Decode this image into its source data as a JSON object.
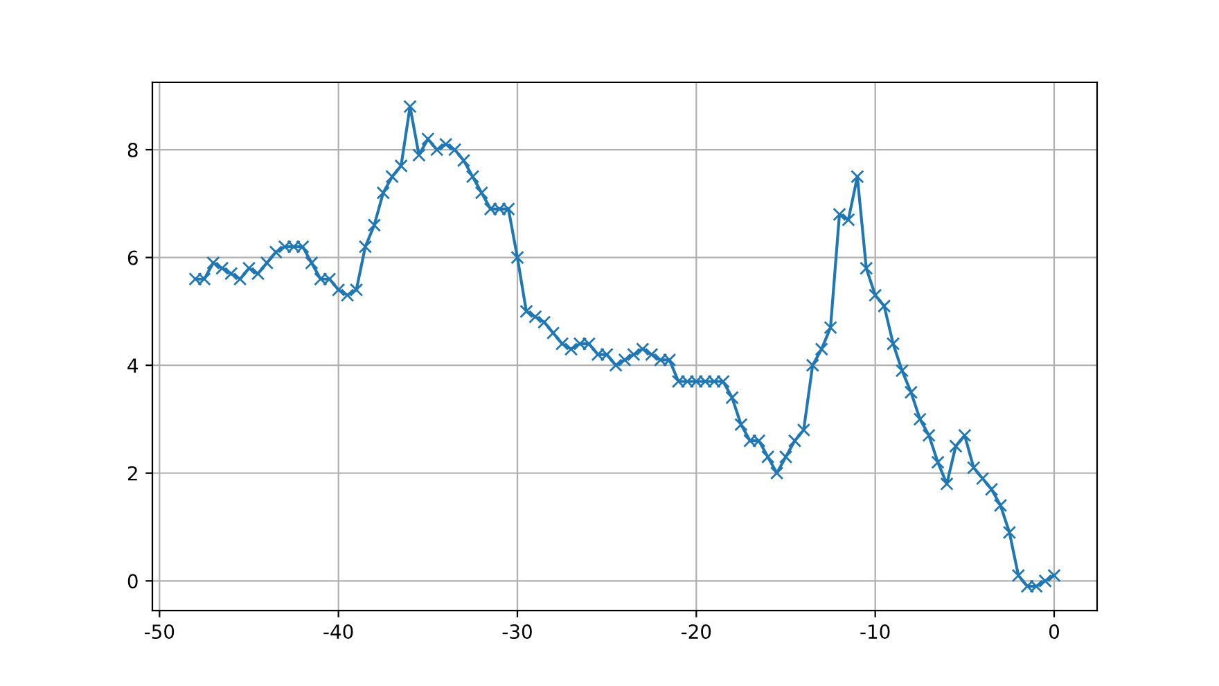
{
  "chart_data": {
    "type": "line",
    "marker": "cross",
    "grid": true,
    "line_style": "solid",
    "xlim": [
      -50.4,
      2.4
    ],
    "ylim": [
      -0.55,
      9.25
    ],
    "xticks": [
      -50,
      -40,
      -30,
      -20,
      -10,
      0
    ],
    "yticks": [
      0,
      2,
      4,
      6,
      8
    ],
    "x": [
      -48,
      -47.5,
      -47,
      -46.5,
      -46,
      -45.5,
      -45,
      -44.5,
      -44,
      -43.5,
      -43,
      -42.5,
      -42,
      -41.5,
      -41,
      -40.5,
      -40,
      -39.5,
      -39,
      -38.5,
      -38,
      -37.5,
      -37,
      -36.5,
      -36,
      -35.5,
      -35,
      -34.5,
      -34,
      -33.5,
      -33,
      -32.5,
      -32,
      -31.5,
      -31,
      -30.5,
      -30,
      -29.5,
      -29,
      -28.5,
      -28,
      -27.5,
      -27,
      -26.5,
      -26,
      -25.5,
      -25,
      -24.5,
      -24,
      -23.5,
      -23,
      -22.5,
      -22,
      -21.5,
      -21,
      -20.5,
      -20,
      -19.5,
      -19,
      -18.5,
      -18,
      -17.5,
      -17,
      -16.5,
      -16,
      -15.5,
      -15,
      -14.5,
      -14,
      -13.5,
      -13,
      -12.5,
      -12,
      -11.5,
      -11,
      -10.5,
      -10,
      -9.5,
      -9,
      -8.5,
      -8,
      -7.5,
      -7,
      -6.5,
      -6,
      -5.5,
      -5,
      -4.5,
      -4,
      -3.5,
      -3,
      -2.5,
      -2,
      -1.5,
      -1,
      -0.5,
      0
    ],
    "series": [
      {
        "color": "#1f77b4",
        "values": [
          5.6,
          5.6,
          5.9,
          5.8,
          5.7,
          5.6,
          5.8,
          5.7,
          5.9,
          6.1,
          6.2,
          6.2,
          6.2,
          5.9,
          5.6,
          5.6,
          5.4,
          5.3,
          5.4,
          6.2,
          6.6,
          7.2,
          7.5,
          7.7,
          8.8,
          7.9,
          8.2,
          8.0,
          8.1,
          8.0,
          7.8,
          7.5,
          7.2,
          6.9,
          6.9,
          6.9,
          6.0,
          5.0,
          4.9,
          4.8,
          4.6,
          4.4,
          4.3,
          4.4,
          4.4,
          4.2,
          4.2,
          4.0,
          4.1,
          4.2,
          4.3,
          4.2,
          4.1,
          4.1,
          3.7,
          3.7,
          3.7,
          3.7,
          3.7,
          3.7,
          3.4,
          2.9,
          2.6,
          2.6,
          2.3,
          2.0,
          2.3,
          2.6,
          2.8,
          4.0,
          4.3,
          4.7,
          6.8,
          6.7,
          7.5,
          5.8,
          5.3,
          5.1,
          4.4,
          3.9,
          3.5,
          3.0,
          2.7,
          2.2,
          1.8,
          2.5,
          2.7,
          2.1,
          1.9,
          1.7,
          1.4,
          0.9,
          0.1,
          -0.1,
          -0.1,
          0.0,
          0.1
        ]
      }
    ]
  }
}
